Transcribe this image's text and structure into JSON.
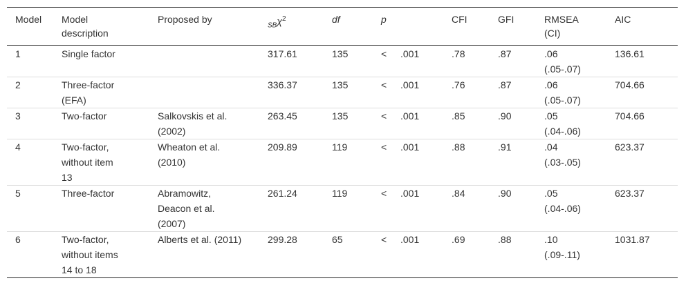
{
  "table": {
    "headers": [
      "Model",
      "Model description",
      "Proposed by",
      {
        "prefix": "SB",
        "symbol": "χ",
        "power": "2"
      },
      "df",
      "p",
      "CFI",
      "GFI",
      "RMSEA (CI)",
      "AIC"
    ],
    "rows": [
      [
        "1",
        "Single factor",
        null,
        "317.61",
        "135",
        "<",
        ".001",
        ".78",
        ".87",
        ".06 (.05-.07)",
        "136.61"
      ],
      [
        "2",
        "Three-factor (EFA)",
        null,
        "336.37",
        "135",
        "<",
        ".001",
        ".76",
        ".87",
        ".06 (.05-.07)",
        "704.66"
      ],
      [
        "3",
        "Two-factor",
        "Salkovskis et al. (2002)",
        "263.45",
        "135",
        "<",
        ".001",
        ".85",
        ".90",
        ".05 (.04-.06)",
        "704.66"
      ],
      [
        "4",
        "Two-factor, without item 13",
        "Wheaton et al. (2010)",
        "209.89",
        "119",
        "<",
        ".001",
        ".88",
        ".91",
        ".04 (.03-.05)",
        "623.37"
      ],
      [
        "5",
        "Three-factor",
        "Abramowitz, Deacon et al. (2007)",
        "261.24",
        "119",
        "<",
        ".001",
        ".84",
        ".90",
        ".05 (.04-.06)",
        "623.37"
      ],
      [
        "6",
        "Two-factor, without items 14 to 18",
        "Alberts et al. (2011)",
        "299.28",
        "65",
        "<",
        ".001",
        ".69",
        ".88",
        ".10 (.09-.11)",
        "1031.87"
      ]
    ]
  }
}
